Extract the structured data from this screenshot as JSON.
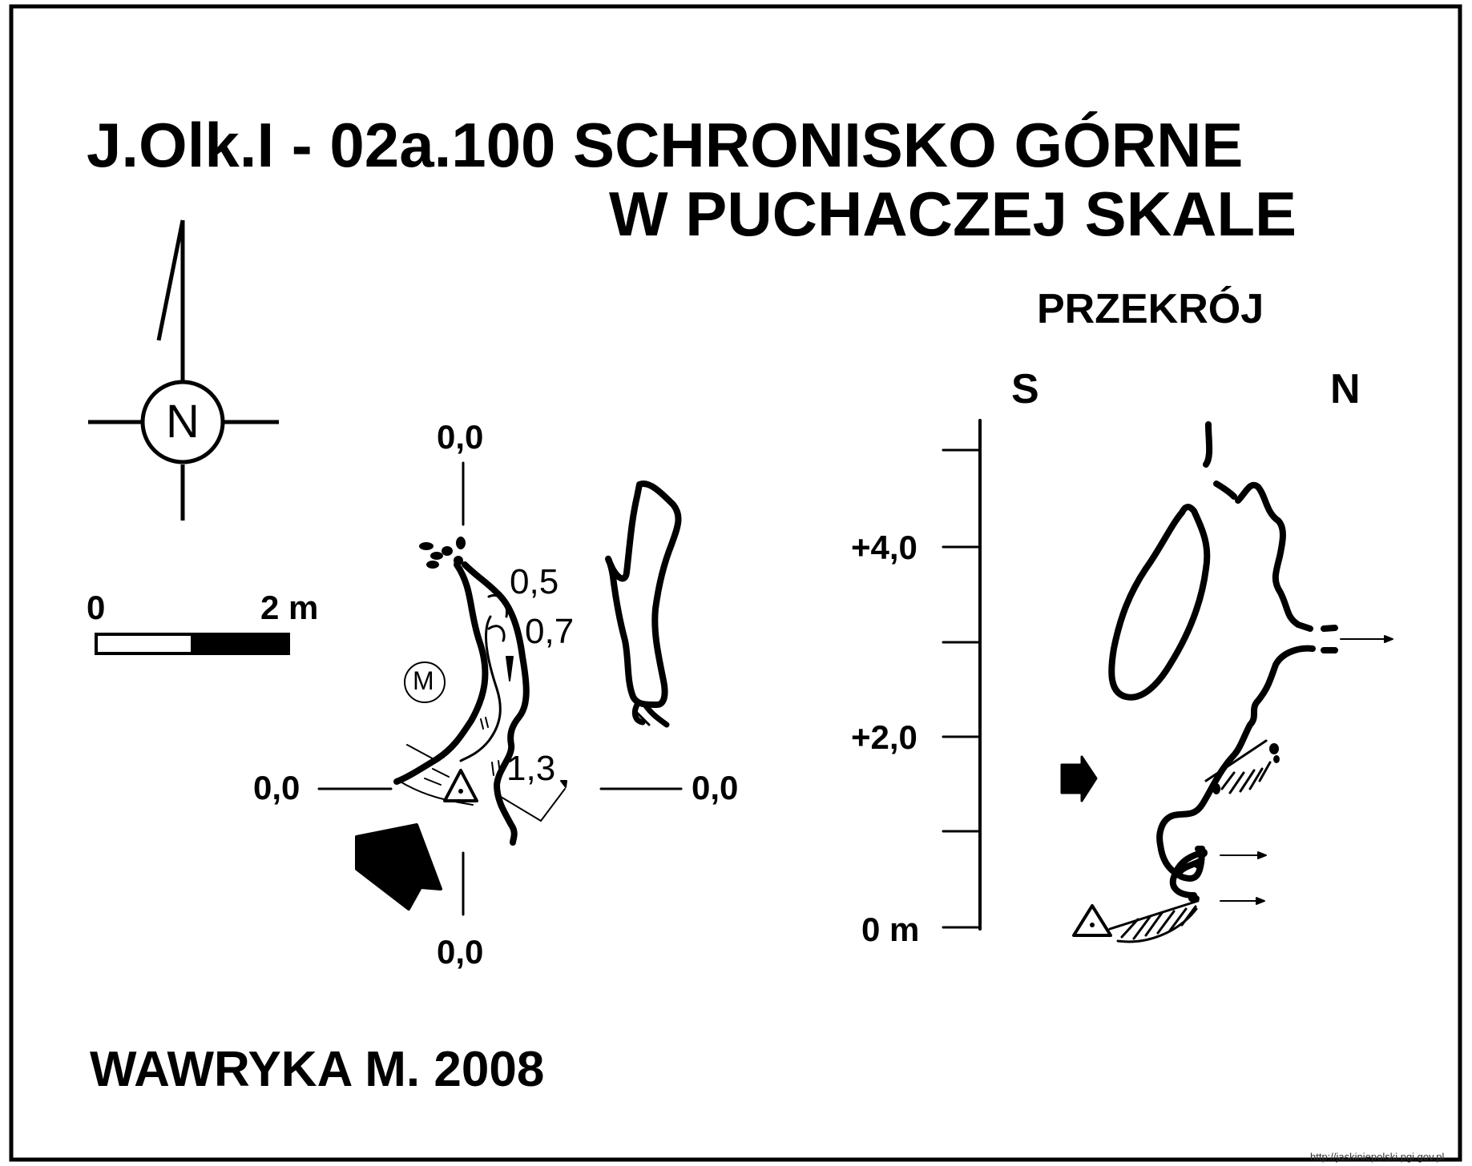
{
  "title": {
    "line1": "J.Olk.I - 02a.100  SCHRONISKO GÓRNE",
    "line2": "W PUCHACZEJ SKALE"
  },
  "compass": {
    "label": "N",
    "icon": "north-arrow-icon"
  },
  "scale_bar": {
    "start_label": "0",
    "end_label": "2 m"
  },
  "plan": {
    "axis_labels": {
      "top": "0,0",
      "left": "0,0",
      "right": "0,0",
      "bottom": "0,0"
    },
    "depths": [
      "0,5",
      "0,7",
      "1,3"
    ],
    "marker_m": "M"
  },
  "section": {
    "title": "PRZEKRÓJ",
    "direction_left": "S",
    "direction_right": "N",
    "axis_labels": [
      "+4,0",
      "+2,0",
      "0 m"
    ]
  },
  "author": "WAWRYKA M. 2008",
  "source_url": "http://jaskiniepolski.pgi.gov.pl",
  "colors": {
    "ink": "#000000",
    "background": "#ffffff"
  }
}
